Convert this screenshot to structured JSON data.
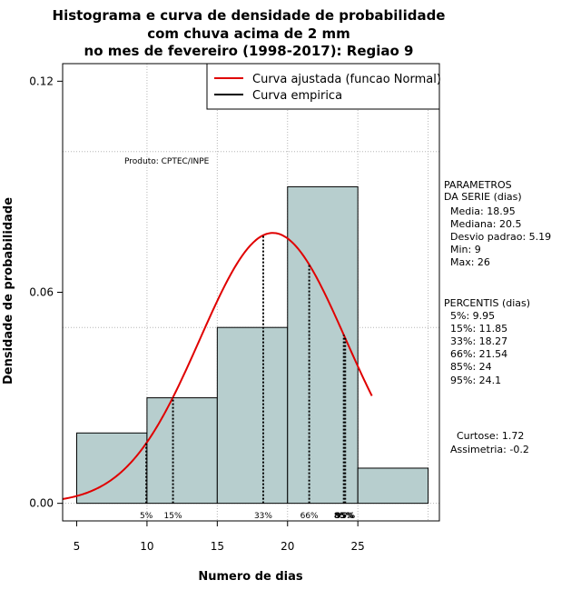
{
  "chart_data": {
    "type": "bar",
    "title": [
      "Histograma e curva de densidade de probabilidade",
      "com chuva acima de 2 mm",
      "no mes de fevereiro (1998-2017): Regiao 9"
    ],
    "xlabel": "Numero de dias",
    "ylabel": "Densidade de probabilidade",
    "xlim": [
      4,
      30.8
    ],
    "ylim": [
      -0.005,
      0.125
    ],
    "x_ticks": [
      5,
      10,
      15,
      20,
      25
    ],
    "y_ticks": [
      0.0,
      0.06,
      0.12
    ],
    "y_tick_labels": [
      "0.00",
      "0.06",
      "0.12"
    ],
    "bins": [
      {
        "from": 5,
        "to": 10,
        "density": 0.02
      },
      {
        "from": 10,
        "to": 15,
        "density": 0.03
      },
      {
        "from": 15,
        "to": 20,
        "density": 0.05
      },
      {
        "from": 20,
        "to": 25,
        "density": 0.09
      },
      {
        "from": 25,
        "to": 30,
        "density": 0.01
      }
    ],
    "h_gridlines": [
      0.0,
      0.05,
      0.1
    ],
    "v_gridlines": [
      10,
      15,
      20,
      25,
      30
    ],
    "normal_fit": {
      "mean": 18.95,
      "sd": 5.19,
      "x_range": [
        4,
        26
      ],
      "color": "#e00000"
    },
    "percentile_lines": [
      {
        "label": "5%",
        "x": 9.95,
        "bold": false
      },
      {
        "label": "15%",
        "x": 11.85,
        "bold": false
      },
      {
        "label": "33%",
        "x": 18.27,
        "bold": false
      },
      {
        "label": "66%",
        "x": 21.54,
        "bold": false
      },
      {
        "label": "85%",
        "x": 24,
        "bold": true
      },
      {
        "label": "95%",
        "x": 24.1,
        "bold": true
      }
    ],
    "legend": {
      "position": "top-right",
      "entries": [
        {
          "label": "Curva ajustada (funcao Normal)",
          "color": "#e00000"
        },
        {
          "label": "Curva empirica",
          "color": "#000000"
        }
      ]
    },
    "annotation": "Produto: CPTEC/INPE",
    "bar_color": "#b7cece",
    "side_panel": [
      "PARAMETROS",
      "DA SERIE (dias)",
      "  Media: 18.95",
      "  Mediana: 20.5",
      "  Desvio padrao: 5.19",
      "  Min: 9",
      "  Max: 26",
      "",
      "PERCENTIS (dias)",
      "  5%: 9.95",
      "  15%: 11.85",
      "  33%: 18.27",
      "  66%: 21.54",
      "  85%: 24",
      "  95%: 24.1",
      "",
      "",
      "    Curtose: 1.72",
      "  Assimetria: -0.2"
    ]
  }
}
